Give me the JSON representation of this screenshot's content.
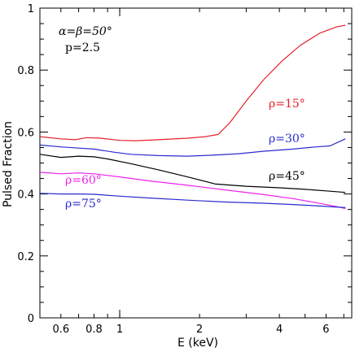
{
  "chart_data": {
    "type": "line",
    "xlabel": "E (keV)",
    "ylabel": "Pulsed Fraction",
    "xscale": "log",
    "xlim": [
      0.5,
      7.5
    ],
    "ylim": [
      0,
      1
    ],
    "x_tick_labels": [
      {
        "value": 0.6,
        "label": "0.6"
      },
      {
        "value": 0.8,
        "label": "0.8"
      },
      {
        "value": 1,
        "label": "1"
      },
      {
        "value": 2,
        "label": "2"
      },
      {
        "value": 4,
        "label": "4"
      },
      {
        "value": 6,
        "label": "6"
      }
    ],
    "y_tick_labels": [
      {
        "value": 0,
        "label": "0"
      },
      {
        "value": 0.2,
        "label": "0.2"
      },
      {
        "value": 0.4,
        "label": "0.4"
      },
      {
        "value": 0.6,
        "label": "0.6"
      },
      {
        "value": 0.8,
        "label": "0.8"
      },
      {
        "value": 1,
        "label": "1"
      }
    ],
    "grid": false,
    "annotations": {
      "angles": "α=β=50°",
      "p": "p=2.5"
    },
    "series": [
      {
        "name": "ρ=15°",
        "color": "#e8202a",
        "x": [
          0.5,
          0.6,
          0.68,
          0.75,
          0.85,
          1.0,
          1.15,
          1.4,
          1.8,
          2.1,
          2.35,
          2.6,
          3.0,
          3.5,
          4.1,
          4.8,
          5.7,
          6.6,
          7.1
        ],
        "y": [
          0.585,
          0.578,
          0.575,
          0.582,
          0.58,
          0.573,
          0.572,
          0.575,
          0.58,
          0.585,
          0.592,
          0.63,
          0.7,
          0.77,
          0.83,
          0.88,
          0.92,
          0.94,
          0.945
        ]
      },
      {
        "name": "ρ=30°",
        "color": "#2a2ad0",
        "x": [
          0.5,
          0.6,
          0.7,
          0.8,
          0.95,
          1.1,
          1.4,
          1.8,
          2.2,
          2.8,
          3.5,
          4.5,
          5.5,
          6.2,
          7.1
        ],
        "y": [
          0.558,
          0.552,
          0.548,
          0.545,
          0.535,
          0.528,
          0.524,
          0.522,
          0.525,
          0.53,
          0.538,
          0.545,
          0.552,
          0.555,
          0.578
        ]
      },
      {
        "name": "ρ=45°",
        "color": "#000000",
        "x": [
          0.5,
          0.6,
          0.7,
          0.8,
          0.9,
          1.1,
          1.4,
          1.8,
          2.3,
          3.0,
          4.0,
          5.0,
          6.0,
          7.1
        ],
        "y": [
          0.528,
          0.518,
          0.522,
          0.52,
          0.513,
          0.498,
          0.478,
          0.455,
          0.432,
          0.425,
          0.42,
          0.415,
          0.41,
          0.405
        ]
      },
      {
        "name": "ρ=60°",
        "color": "#ee22ee",
        "x": [
          0.5,
          0.6,
          0.7,
          0.8,
          1.0,
          1.3,
          1.8,
          2.5,
          3.5,
          4.5,
          5.5,
          6.5,
          7.1
        ],
        "y": [
          0.47,
          0.465,
          0.468,
          0.465,
          0.455,
          0.442,
          0.428,
          0.413,
          0.398,
          0.385,
          0.372,
          0.36,
          0.353
        ]
      },
      {
        "name": "ρ=75°",
        "color": "#2a2ad0",
        "x": [
          0.5,
          0.6,
          0.7,
          0.8,
          1.0,
          1.3,
          1.8,
          2.5,
          3.5,
          4.5,
          5.5,
          6.5,
          7.1
        ],
        "y": [
          0.402,
          0.4,
          0.4,
          0.399,
          0.393,
          0.387,
          0.38,
          0.374,
          0.37,
          0.366,
          0.362,
          0.358,
          0.356
        ]
      }
    ]
  }
}
